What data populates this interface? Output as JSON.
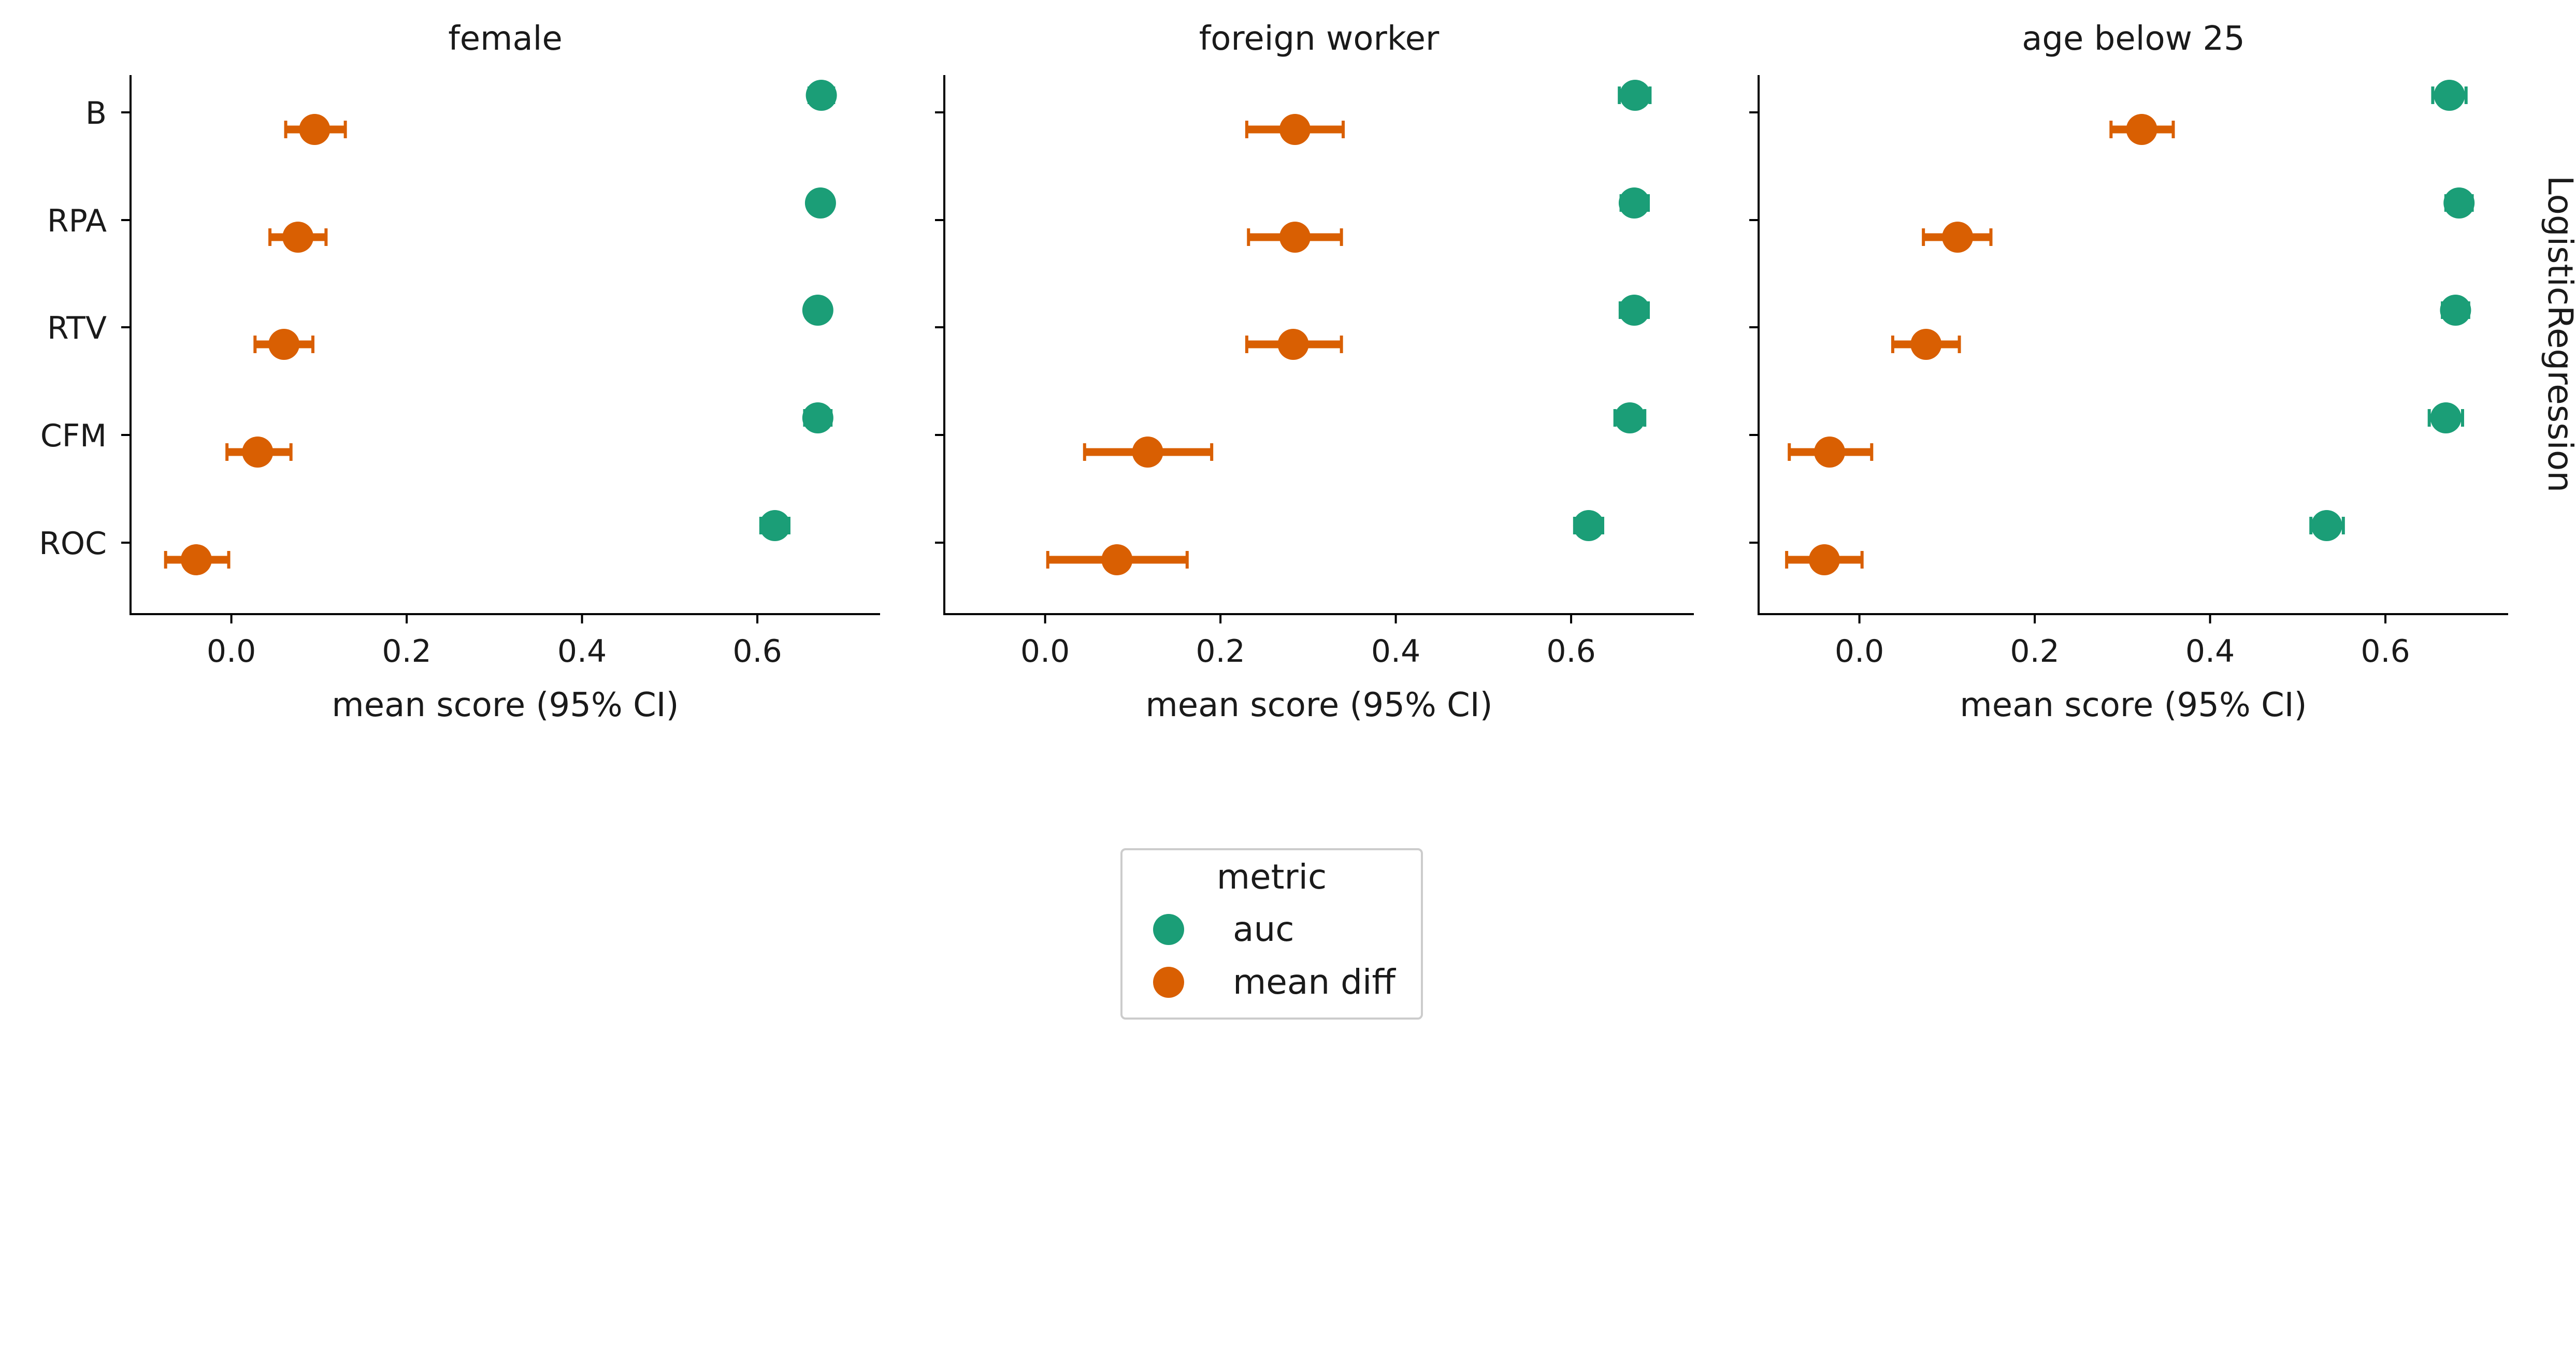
{
  "chart_data": {
    "type": "scatter",
    "style": "point estimate with horizontal 95% CI error bars, faceted",
    "row_label": "LogisticRegression",
    "categories": [
      "B",
      "RPA",
      "RTV",
      "CFM",
      "ROC"
    ],
    "xlabel": "mean score (95% CI)",
    "xlim": [
      -0.115,
      0.74
    ],
    "xticks": [
      0.0,
      0.2,
      0.4,
      0.6
    ],
    "xtick_labels": [
      "0.0",
      "0.2",
      "0.4",
      "0.6"
    ],
    "grid": false,
    "legend": {
      "title": "metric",
      "placement": "bottom-center, below panels",
      "entries": [
        {
          "label": "auc",
          "color": "#1b9e77"
        },
        {
          "label": "mean diff",
          "color": "#d95f02"
        }
      ]
    },
    "colors": {
      "auc": "#1b9e77",
      "mean diff": "#d95f02"
    },
    "panels": [
      {
        "title": "female",
        "series": [
          {
            "name": "auc",
            "values": [
              0.673,
              0.672,
              0.669,
              0.669,
              0.62
            ],
            "ci_low": [
              0.659,
              0.661,
              0.656,
              0.654,
              0.604
            ],
            "ci_high": [
              0.687,
              0.684,
              0.682,
              0.684,
              0.636
            ]
          },
          {
            "name": "mean diff",
            "values": [
              0.095,
              0.076,
              0.06,
              0.03,
              -0.04
            ],
            "ci_low": [
              0.062,
              0.044,
              0.027,
              -0.005,
              -0.075
            ],
            "ci_high": [
              0.13,
              0.108,
              0.093,
              0.068,
              -0.003
            ]
          }
        ]
      },
      {
        "title": "foreign worker",
        "series": [
          {
            "name": "auc",
            "values": [
              0.673,
              0.672,
              0.672,
              0.667,
              0.62
            ],
            "ci_low": [
              0.655,
              0.657,
              0.656,
              0.65,
              0.604
            ],
            "ci_high": [
              0.69,
              0.688,
              0.688,
              0.684,
              0.636
            ]
          },
          {
            "name": "mean diff",
            "values": [
              0.285,
              0.285,
              0.283,
              0.117,
              0.082
            ],
            "ci_low": [
              0.23,
              0.232,
              0.23,
              0.045,
              0.003
            ],
            "ci_high": [
              0.34,
              0.338,
              0.338,
              0.19,
              0.162
            ]
          }
        ]
      },
      {
        "title": "age below 25",
        "series": [
          {
            "name": "auc",
            "values": [
              0.673,
              0.684,
              0.68,
              0.669,
              0.533
            ],
            "ci_low": [
              0.654,
              0.669,
              0.665,
              0.65,
              0.515
            ],
            "ci_high": [
              0.692,
              0.699,
              0.695,
              0.688,
              0.552
            ]
          },
          {
            "name": "mean diff",
            "values": [
              0.322,
              0.112,
              0.076,
              -0.034,
              -0.04
            ],
            "ci_low": [
              0.287,
              0.073,
              0.038,
              -0.08,
              -0.083
            ],
            "ci_high": [
              0.358,
              0.15,
              0.114,
              0.014,
              0.003
            ]
          }
        ]
      }
    ]
  }
}
